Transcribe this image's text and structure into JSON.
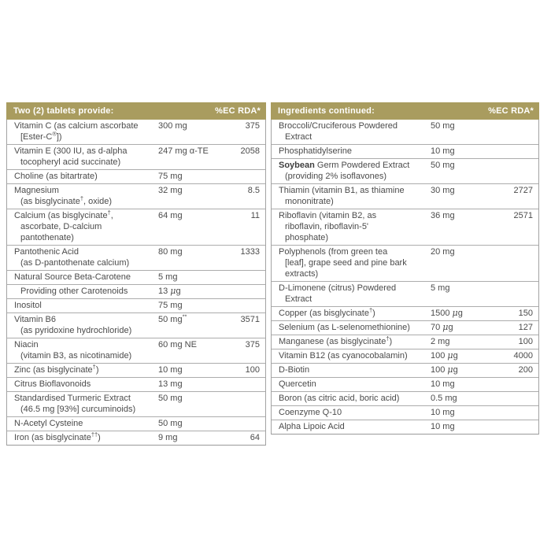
{
  "colors": {
    "header_bg": "#A99C5F",
    "header_text": "#ffffff",
    "row_text": "#4b4b4b",
    "divider": "#acacac",
    "background": "#ffffff"
  },
  "left_table": {
    "header": {
      "title": "Two (2) tablets provide:",
      "rda_label": "%EC RDA*"
    },
    "rows": [
      {
        "name": "Vitamin C (as calcium ascorbate\n[Ester-C®])",
        "amount": "300 mg",
        "rda": "375"
      },
      {
        "name": "Vitamin E (300 IU, as d-alpha\ntocopheryl acid succinate)",
        "amount": "247 mg α-TE",
        "rda": "2058"
      },
      {
        "name": "Choline (as bitartrate)",
        "amount": "75 mg",
        "rda": ""
      },
      {
        "name": "Magnesium\n(as bisglycinate†, oxide)",
        "amount": "32 mg",
        "rda": "8.5"
      },
      {
        "name": "Calcium (as bisglycinate†,\nascorbate, D-calcium\npantothenate)",
        "amount": "64 mg",
        "rda": "11"
      },
      {
        "name": "Pantothenic Acid\n(as D-pantothenate calcium)",
        "amount": "80 mg",
        "rda": "1333"
      },
      {
        "name": "Natural Source Beta-Carotene",
        "amount": "5 mg",
        "rda": ""
      },
      {
        "name": "Providing other Carotenoids",
        "amount": "13 μg",
        "rda": "",
        "indent": true
      },
      {
        "name": "Inositol",
        "amount": "75 mg",
        "rda": ""
      },
      {
        "name": "Vitamin B6\n(as pyridoxine hydrochloride)",
        "amount": "50 mg**",
        "rda": "3571"
      },
      {
        "name": "Niacin\n(vitamin B3, as nicotinamide)",
        "amount": "60 mg NE",
        "rda": "375"
      },
      {
        "name": "Zinc (as bisglycinate†)",
        "amount": "10 mg",
        "rda": "100"
      },
      {
        "name": "Citrus Bioflavonoids",
        "amount": "13 mg",
        "rda": ""
      },
      {
        "name": "Standardised Turmeric Extract\n(46.5 mg [93%] curcuminoids)",
        "amount": "50 mg",
        "rda": ""
      },
      {
        "name": "N-Acetyl Cysteine",
        "amount": "50 mg",
        "rda": ""
      },
      {
        "name": "Iron (as bisglycinate††)",
        "amount": "9 mg",
        "rda": "64"
      }
    ]
  },
  "right_table": {
    "header": {
      "title": "Ingredients continued:",
      "rda_label": "%EC RDA*"
    },
    "rows": [
      {
        "name": "Broccoli/Cruciferous Powdered\nExtract",
        "amount": "50 mg",
        "rda": ""
      },
      {
        "name": "Phosphatidylserine",
        "amount": "10 mg",
        "rda": ""
      },
      {
        "bold": "Soybean",
        "name": " Germ Powdered Extract\n(providing 2% isoflavones)",
        "amount": "50 mg",
        "rda": ""
      },
      {
        "name": "Thiamin (vitamin B1, as thiamine\nmononitrate)",
        "amount": "30 mg",
        "rda": "2727"
      },
      {
        "name": "Riboflavin (vitamin B2, as\nriboflavin, riboflavin-5'\nphosphate)",
        "amount": "36 mg",
        "rda": "2571"
      },
      {
        "name": "Polyphenols (from green tea\n[leaf], grape seed and pine bark\nextracts)",
        "amount": "20 mg",
        "rda": ""
      },
      {
        "name": "D-Limonene (citrus) Powdered\nExtract",
        "amount": "5 mg",
        "rda": ""
      },
      {
        "name": "Copper (as bisglycinate†)",
        "amount": "1500 μg",
        "rda": "150"
      },
      {
        "name": "Selenium (as L-selenomethionine)",
        "amount": "70 μg",
        "rda": "127"
      },
      {
        "name": "Manganese (as bisglycinate†)",
        "amount": "2 mg",
        "rda": "100"
      },
      {
        "name": "Vitamin B12 (as cyanocobalamin)",
        "amount": "100 μg",
        "rda": "4000"
      },
      {
        "name": "D-Biotin",
        "amount": "100 μg",
        "rda": "200"
      },
      {
        "name": "Quercetin",
        "amount": "10 mg",
        "rda": ""
      },
      {
        "name": "Boron (as citric acid, boric acid)",
        "amount": "0.5 mg",
        "rda": ""
      },
      {
        "name": "Coenzyme Q-10",
        "amount": "10 mg",
        "rda": ""
      },
      {
        "name": "Alpha Lipoic Acid",
        "amount": "10 mg",
        "rda": ""
      }
    ]
  }
}
